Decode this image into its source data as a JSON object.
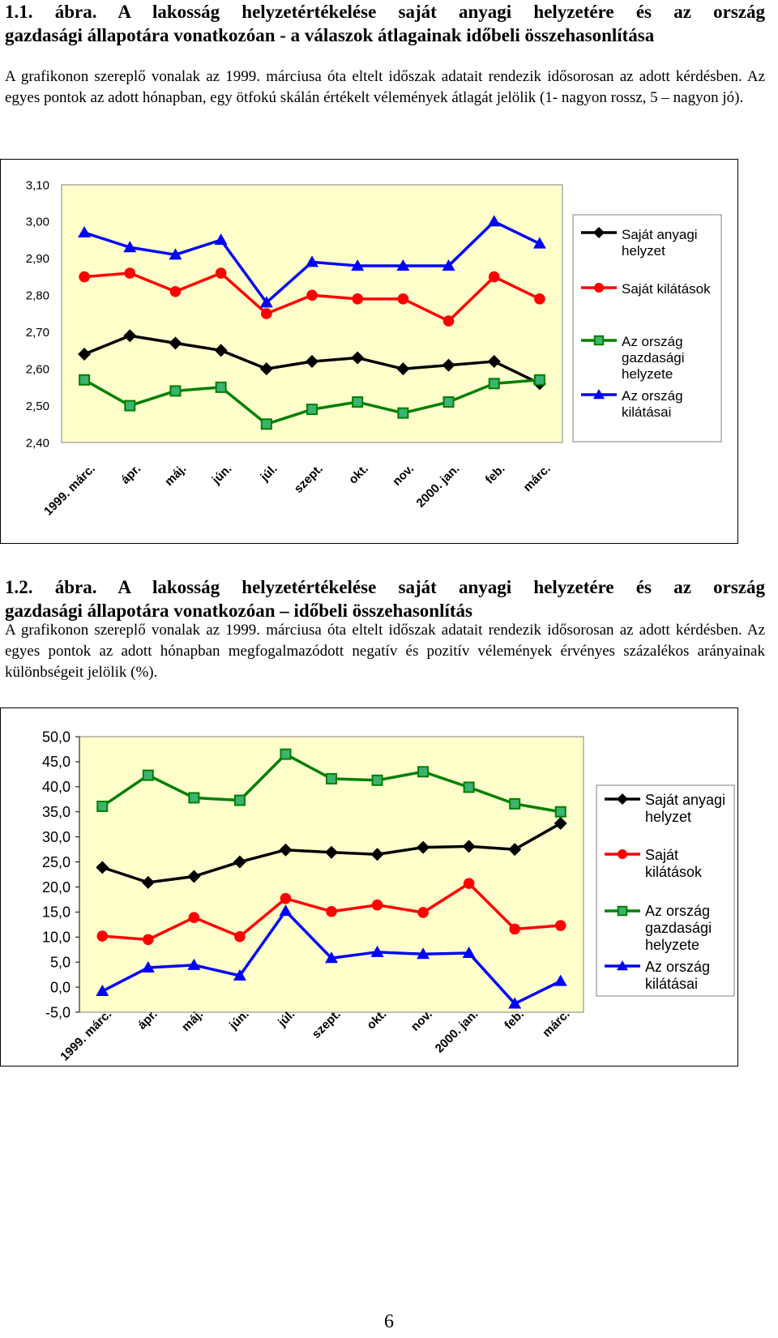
{
  "figure1": {
    "title_line1": "1.1. ábra. A lakosság helyzetértékelése saját anyagi helyzetére és az ország",
    "title_line2": "gazdasági állapotára vonatkozóan - a válaszok átlagainak időbeli összehasonlítása",
    "description": "A grafikonon szereplő vonalak az 1999. márciusa óta eltelt időszak adatait rendezik idősorosan az adott kérdésben. Az egyes pontok az adott hónapban, egy ötfokú skálán értékelt vélemények átlagát jelölik (1- nagyon rossz, 5 – nagyon jó)."
  },
  "figure2": {
    "title_line1": "1.2. ábra. A lakosság helyzetértékelése saját anyagi helyzetére és az ország",
    "title_line2": "gazdasági állapotára vonatkozóan – időbeli összehasonlítás",
    "description": "A grafikonon szereplő vonalak az 1999. márciusa óta eltelt időszak adatait rendezik idősorosan az adott kérdésben. Az egyes pontok az adott hónapban megfogalmazódott negatív és pozitív vélemények érvényes százalékos arányainak különbségeit jelölik (%)."
  },
  "page_number": "6",
  "colors": {
    "plot_bg": "#ffffcc",
    "saját_anyagi": "#000000",
    "saját_kilátások": "#ff0000",
    "ország_gazdasági": "#008000",
    "ország_kilátásai": "#0000ff"
  },
  "chart_data": [
    {
      "type": "line",
      "categories": [
        "1999. márc.",
        "ápr.",
        "máj.",
        "jún.",
        "júl.",
        "szept.",
        "okt.",
        "nov.",
        "2000. jan.",
        "feb.",
        "márc."
      ],
      "ylim": [
        2.4,
        3.1
      ],
      "yticks": [
        "2,40",
        "2,50",
        "2,60",
        "2,70",
        "2,80",
        "2,90",
        "3,00",
        "3,10"
      ],
      "legend_position": "right",
      "series": [
        {
          "name": "Saját anyagi helyzet",
          "marker": "diamond",
          "color": "#000000",
          "values": [
            2.64,
            2.69,
            2.67,
            2.65,
            2.6,
            2.62,
            2.63,
            2.6,
            2.61,
            2.62,
            2.56
          ]
        },
        {
          "name": "Saját kilátások",
          "marker": "circle",
          "color": "#ff0000",
          "values": [
            2.85,
            2.86,
            2.81,
            2.86,
            2.75,
            2.8,
            2.79,
            2.79,
            2.73,
            2.85,
            2.79
          ]
        },
        {
          "name": "Az ország gazdasági helyzete",
          "marker": "square",
          "color": "#008000",
          "values": [
            2.57,
            2.5,
            2.54,
            2.55,
            2.45,
            2.49,
            2.51,
            2.48,
            2.51,
            2.56,
            2.57
          ]
        },
        {
          "name": "Az ország kilátásai",
          "marker": "triangle",
          "color": "#0000ff",
          "values": [
            2.97,
            2.93,
            2.91,
            2.95,
            2.78,
            2.89,
            2.88,
            2.88,
            2.88,
            3.0,
            2.94
          ]
        }
      ]
    },
    {
      "type": "line",
      "categories": [
        "1999. márc.",
        "ápr.",
        "máj.",
        "jún.",
        "júl.",
        "szept.",
        "okt.",
        "nov.",
        "2000. jan.",
        "feb.",
        "márc."
      ],
      "ylim": [
        -5,
        50
      ],
      "yticks": [
        "-5,0",
        "0,0",
        "5,0",
        "10,0",
        "15,0",
        "20,0",
        "25,0",
        "30,0",
        "35,0",
        "40,0",
        "45,0",
        "50,0"
      ],
      "legend_position": "right",
      "series": [
        {
          "name": "Saját anyagi helyzet",
          "marker": "diamond",
          "color": "#000000",
          "values": [
            23.9,
            20.9,
            22.1,
            25.0,
            27.4,
            26.9,
            26.5,
            27.9,
            28.1,
            27.5,
            32.7
          ]
        },
        {
          "name": "Saját kilátások",
          "marker": "circle",
          "color": "#ff0000",
          "values": [
            10.2,
            9.5,
            13.9,
            10.1,
            17.7,
            15.1,
            16.4,
            14.9,
            20.7,
            11.6,
            12.3
          ]
        },
        {
          "name": "Az ország gazdasági helyzete",
          "marker": "square",
          "color": "#008000",
          "values": [
            36.1,
            42.3,
            37.8,
            37.3,
            46.5,
            41.6,
            41.3,
            43.0,
            39.9,
            36.6,
            35.0
          ]
        },
        {
          "name": "Az ország kilátásai",
          "marker": "triangle",
          "color": "#0000ff",
          "values": [
            -0.8,
            3.9,
            4.4,
            2.3,
            15.2,
            5.8,
            7.0,
            6.6,
            6.8,
            -3.3,
            1.2
          ]
        }
      ]
    }
  ]
}
